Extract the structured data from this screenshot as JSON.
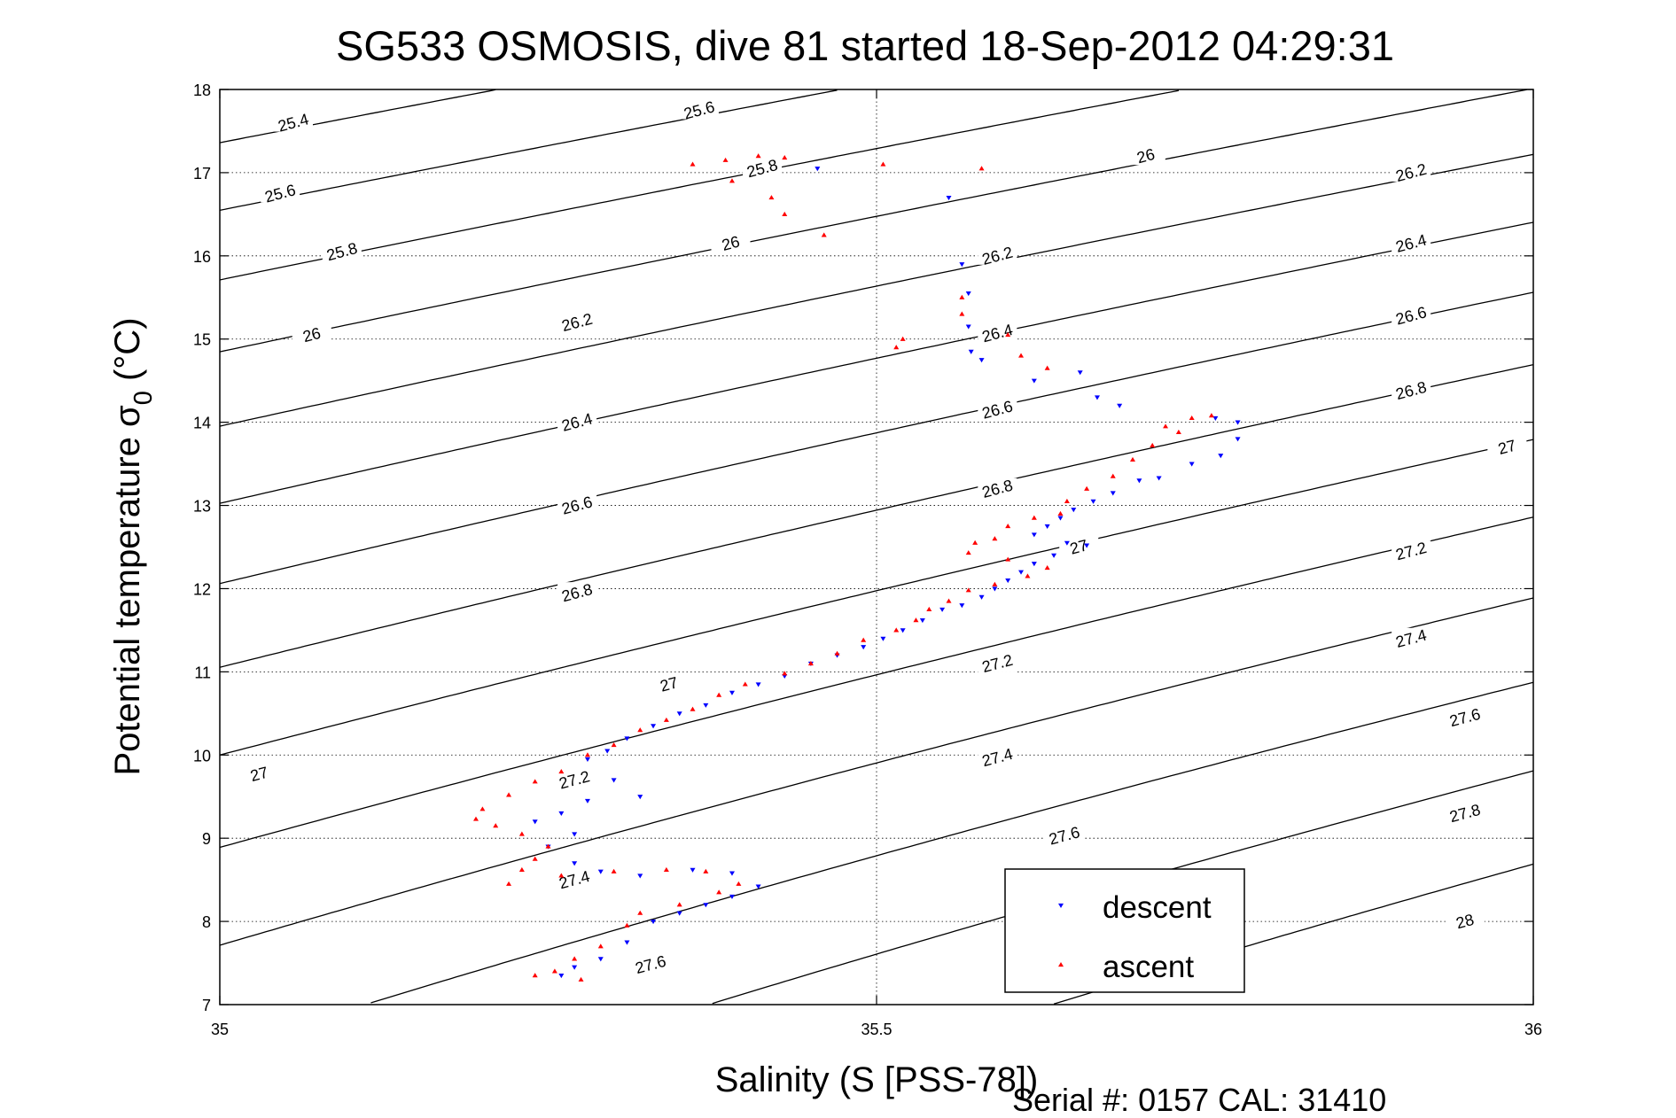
{
  "chart_data": {
    "type": "scatter",
    "title": "SG533 OSMOSIS, dive 81 started 18-Sep-2012 04:29:31",
    "xlabel": "Salinity (S [PSS-78])",
    "ylabel_main": "Potential temperature σ",
    "ylabel_sub": "0",
    "ylabel_unit": " (°C)",
    "footer": "Serial #: 0157  CAL: 31410",
    "xlim": [
      35,
      36
    ],
    "ylim": [
      7,
      18
    ],
    "xticks": [
      35,
      35.5,
      36
    ],
    "xtick_labels": [
      "35",
      "35.5",
      "36"
    ],
    "yticks": [
      7,
      8,
      9,
      10,
      11,
      12,
      13,
      14,
      15,
      16,
      17,
      18
    ],
    "ytick_labels": [
      "7",
      "8",
      "9",
      "10",
      "11",
      "12",
      "13",
      "14",
      "15",
      "16",
      "17",
      "18"
    ],
    "grid": true,
    "legend_position": "bottom-right",
    "contours": {
      "levels": [
        25.4,
        25.6,
        25.8,
        26,
        26.2,
        26.4,
        26.6,
        26.8,
        27,
        27.2,
        27.4,
        27.6,
        27.8,
        28
      ],
      "labels": [
        {
          "text": "25.4",
          "x": 35.056,
          "y": 17.6
        },
        {
          "text": "25.6",
          "x": 35.365,
          "y": 17.75
        },
        {
          "text": "25.6",
          "x": 35.046,
          "y": 16.75
        },
        {
          "text": "25.8",
          "x": 35.093,
          "y": 16.05
        },
        {
          "text": "25.8",
          "x": 35.413,
          "y": 17.05
        },
        {
          "text": "26",
          "x": 35.07,
          "y": 15.05
        },
        {
          "text": "26",
          "x": 35.389,
          "y": 16.15
        },
        {
          "text": "26",
          "x": 35.705,
          "y": 17.2
        },
        {
          "text": "26.2",
          "x": 35.272,
          "y": 15.2
        },
        {
          "text": "26.2",
          "x": 35.592,
          "y": 16.0
        },
        {
          "text": "26.2",
          "x": 35.907,
          "y": 17.0
        },
        {
          "text": "26.4",
          "x": 35.272,
          "y": 14.0
        },
        {
          "text": "26.4",
          "x": 35.592,
          "y": 15.07
        },
        {
          "text": "26.4",
          "x": 35.907,
          "y": 16.15
        },
        {
          "text": "26.6",
          "x": 35.272,
          "y": 13.0
        },
        {
          "text": "26.6",
          "x": 35.592,
          "y": 14.15
        },
        {
          "text": "26.6",
          "x": 35.907,
          "y": 15.28
        },
        {
          "text": "26.8",
          "x": 35.272,
          "y": 11.95
        },
        {
          "text": "26.8",
          "x": 35.592,
          "y": 13.2
        },
        {
          "text": "26.8",
          "x": 35.907,
          "y": 14.38
        },
        {
          "text": "27",
          "x": 35.03,
          "y": 9.77
        },
        {
          "text": "27",
          "x": 35.342,
          "y": 10.85
        },
        {
          "text": "27",
          "x": 35.654,
          "y": 12.5
        },
        {
          "text": "27",
          "x": 35.98,
          "y": 13.7
        },
        {
          "text": "27.2",
          "x": 35.27,
          "y": 9.7
        },
        {
          "text": "27.2",
          "x": 35.592,
          "y": 11.1
        },
        {
          "text": "27.2",
          "x": 35.907,
          "y": 12.45
        },
        {
          "text": "27.4",
          "x": 35.27,
          "y": 8.5
        },
        {
          "text": "27.4",
          "x": 35.592,
          "y": 9.97
        },
        {
          "text": "27.4",
          "x": 35.907,
          "y": 11.4
        },
        {
          "text": "27.6",
          "x": 35.328,
          "y": 7.48
        },
        {
          "text": "27.6",
          "x": 35.643,
          "y": 9.03
        },
        {
          "text": "27.6",
          "x": 35.948,
          "y": 10.45
        },
        {
          "text": "27.8",
          "x": 35.948,
          "y": 9.3
        },
        {
          "text": "28",
          "x": 35.948,
          "y": 8.0
        }
      ]
    },
    "series": [
      {
        "name": "descent",
        "color": "#0000ff",
        "marker": "triangle-down",
        "points": [
          [
            35.455,
            17.05
          ],
          [
            35.555,
            16.7
          ],
          [
            35.565,
            15.9
          ],
          [
            35.57,
            15.55
          ],
          [
            35.57,
            15.15
          ],
          [
            35.572,
            14.85
          ],
          [
            35.58,
            14.75
          ],
          [
            35.62,
            14.5
          ],
          [
            35.655,
            14.6
          ],
          [
            35.668,
            14.3
          ],
          [
            35.685,
            14.2
          ],
          [
            35.758,
            14.05
          ],
          [
            35.775,
            14.0
          ],
          [
            35.775,
            13.8
          ],
          [
            35.762,
            13.6
          ],
          [
            35.74,
            13.5
          ],
          [
            35.715,
            13.33
          ],
          [
            35.7,
            13.3
          ],
          [
            35.68,
            13.15
          ],
          [
            35.665,
            13.05
          ],
          [
            35.65,
            12.95
          ],
          [
            35.64,
            12.85
          ],
          [
            35.63,
            12.75
          ],
          [
            35.62,
            12.65
          ],
          [
            35.645,
            12.55
          ],
          [
            35.66,
            12.52
          ],
          [
            35.635,
            12.4
          ],
          [
            35.62,
            12.3
          ],
          [
            35.61,
            12.2
          ],
          [
            35.6,
            12.1
          ],
          [
            35.59,
            12.0
          ],
          [
            35.58,
            11.9
          ],
          [
            35.565,
            11.8
          ],
          [
            35.55,
            11.75
          ],
          [
            35.535,
            11.62
          ],
          [
            35.52,
            11.5
          ],
          [
            35.505,
            11.4
          ],
          [
            35.49,
            11.3
          ],
          [
            35.47,
            11.2
          ],
          [
            35.45,
            11.1
          ],
          [
            35.43,
            10.95
          ],
          [
            35.41,
            10.85
          ],
          [
            35.39,
            10.75
          ],
          [
            35.37,
            10.6
          ],
          [
            35.35,
            10.5
          ],
          [
            35.33,
            10.35
          ],
          [
            35.31,
            10.2
          ],
          [
            35.295,
            10.05
          ],
          [
            35.28,
            9.95
          ],
          [
            35.3,
            9.7
          ],
          [
            35.32,
            9.5
          ],
          [
            35.28,
            9.45
          ],
          [
            35.26,
            9.3
          ],
          [
            35.24,
            9.2
          ],
          [
            35.27,
            9.05
          ],
          [
            35.25,
            8.9
          ],
          [
            35.27,
            8.7
          ],
          [
            35.29,
            8.6
          ],
          [
            35.32,
            8.55
          ],
          [
            35.36,
            8.62
          ],
          [
            35.39,
            8.58
          ],
          [
            35.41,
            8.42
          ],
          [
            35.39,
            8.3
          ],
          [
            35.37,
            8.2
          ],
          [
            35.35,
            8.1
          ],
          [
            35.33,
            8.0
          ],
          [
            35.31,
            7.75
          ],
          [
            35.29,
            7.55
          ],
          [
            35.27,
            7.45
          ],
          [
            35.26,
            7.35
          ]
        ]
      },
      {
        "name": "ascent",
        "color": "#ff0000",
        "marker": "triangle-up",
        "points": [
          [
            35.36,
            17.1
          ],
          [
            35.385,
            17.15
          ],
          [
            35.41,
            17.2
          ],
          [
            35.43,
            17.18
          ],
          [
            35.42,
            16.7
          ],
          [
            35.43,
            16.5
          ],
          [
            35.46,
            16.25
          ],
          [
            35.39,
            16.9
          ],
          [
            35.505,
            17.1
          ],
          [
            35.58,
            17.05
          ],
          [
            35.565,
            15.5
          ],
          [
            35.565,
            15.3
          ],
          [
            35.52,
            15.0
          ],
          [
            35.515,
            14.9
          ],
          [
            35.6,
            15.05
          ],
          [
            35.61,
            14.8
          ],
          [
            35.63,
            14.65
          ],
          [
            35.72,
            13.95
          ],
          [
            35.74,
            14.05
          ],
          [
            35.755,
            14.08
          ],
          [
            35.73,
            13.88
          ],
          [
            35.71,
            13.72
          ],
          [
            35.695,
            13.55
          ],
          [
            35.68,
            13.35
          ],
          [
            35.66,
            13.2
          ],
          [
            35.645,
            13.05
          ],
          [
            35.64,
            12.9
          ],
          [
            35.62,
            12.85
          ],
          [
            35.6,
            12.75
          ],
          [
            35.59,
            12.6
          ],
          [
            35.575,
            12.55
          ],
          [
            35.57,
            12.43
          ],
          [
            35.6,
            12.35
          ],
          [
            35.63,
            12.25
          ],
          [
            35.615,
            12.15
          ],
          [
            35.59,
            12.05
          ],
          [
            35.57,
            11.98
          ],
          [
            35.555,
            11.85
          ],
          [
            35.54,
            11.75
          ],
          [
            35.53,
            11.62
          ],
          [
            35.515,
            11.5
          ],
          [
            35.49,
            11.38
          ],
          [
            35.47,
            11.22
          ],
          [
            35.45,
            11.1
          ],
          [
            35.43,
            10.98
          ],
          [
            35.4,
            10.85
          ],
          [
            35.38,
            10.72
          ],
          [
            35.36,
            10.55
          ],
          [
            35.34,
            10.42
          ],
          [
            35.32,
            10.3
          ],
          [
            35.3,
            10.12
          ],
          [
            35.28,
            10.0
          ],
          [
            35.26,
            9.8
          ],
          [
            35.24,
            9.68
          ],
          [
            35.22,
            9.52
          ],
          [
            35.2,
            9.35
          ],
          [
            35.195,
            9.23
          ],
          [
            35.21,
            9.15
          ],
          [
            35.23,
            9.05
          ],
          [
            35.25,
            8.9
          ],
          [
            35.24,
            8.75
          ],
          [
            35.23,
            8.62
          ],
          [
            35.26,
            8.55
          ],
          [
            35.3,
            8.6
          ],
          [
            35.34,
            8.62
          ],
          [
            35.37,
            8.6
          ],
          [
            35.395,
            8.45
          ],
          [
            35.38,
            8.35
          ],
          [
            35.35,
            8.2
          ],
          [
            35.32,
            8.1
          ],
          [
            35.31,
            7.95
          ],
          [
            35.29,
            7.7
          ],
          [
            35.27,
            7.55
          ],
          [
            35.255,
            7.4
          ],
          [
            35.275,
            7.3
          ],
          [
            35.24,
            7.35
          ],
          [
            35.22,
            8.45
          ]
        ]
      }
    ]
  }
}
